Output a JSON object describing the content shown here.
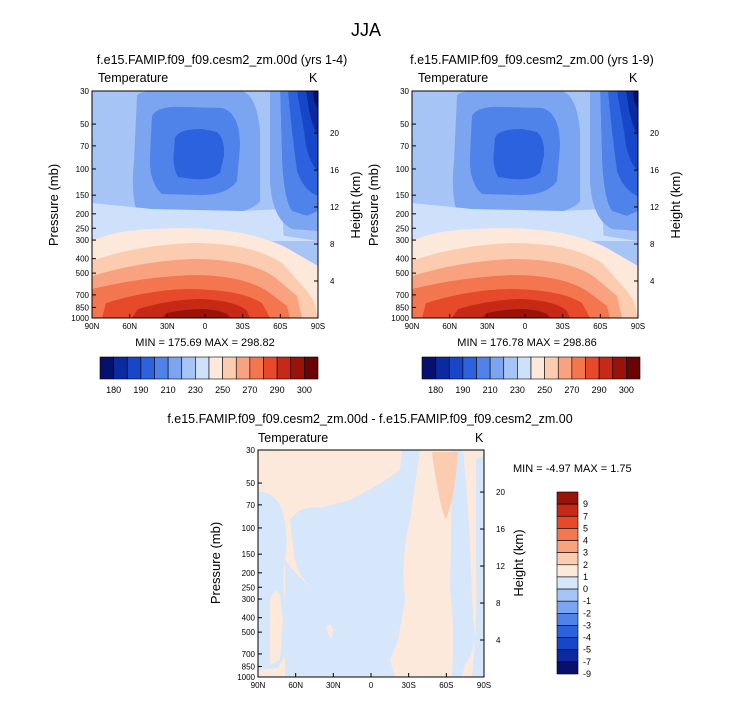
{
  "main_title": "JJA",
  "colors": {
    "temp_palette": [
      "#08106e",
      "#0b2aa0",
      "#1746c8",
      "#2c62dd",
      "#4f83ea",
      "#7ba4f1",
      "#a7c4f6",
      "#cfe0fa",
      "#fde8dc",
      "#fbccb0",
      "#f8a27f",
      "#f4764f",
      "#e64a2b",
      "#c62a17",
      "#9a1309",
      "#6a0303"
    ],
    "diff_palette": [
      "#08106e",
      "#0b2aa0",
      "#1746c8",
      "#2c62dd",
      "#4f83ea",
      "#7ba4f1",
      "#a7c4f6",
      "#d6e6fb",
      "#fde8dc",
      "#fbccb0",
      "#f8a27f",
      "#f4764f",
      "#e64a2b",
      "#c62a17",
      "#9a1309"
    ]
  },
  "panels": [
    {
      "title": "f.e15.FAMIP.f09_f09.cesm2_zm.00d (yrs 1-4)",
      "variable": "Temperature",
      "units": "K",
      "ylabel": "Pressure (mb)",
      "y2label": "Height (km)",
      "minmax": "MIN = 175.69  MAX = 298.82"
    },
    {
      "title": "f.e15.FAMIP.f09_f09.cesm2_zm.00 (yrs 1-9)",
      "variable": "Temperature",
      "units": "K",
      "ylabel": "Pressure (mb)",
      "y2label": "Height (km)",
      "minmax": "MIN = 176.78  MAX = 298.86"
    },
    {
      "title": "f.e15.FAMIP.f09_f09.cesm2_zm.00d - f.e15.FAMIP.f09_f09.cesm2_zm.00",
      "variable": "Temperature",
      "units": "K",
      "ylabel": "Pressure (mb)",
      "y2label": "Height (km)",
      "minmax": "MIN = -4.97  MAX =  1.75"
    }
  ],
  "chart_data": [
    {
      "type": "heatmap",
      "title": "f.e15.FAMIP.f09_f09.cesm2_zm.00d (yrs 1-4)",
      "xlabel": "",
      "ylabel": "Pressure (mb)",
      "x_ticks": [
        "90N",
        "60N",
        "30N",
        "0",
        "30S",
        "60S",
        "90S"
      ],
      "y_ticks": [
        "30",
        "50",
        "70",
        "100",
        "150",
        "200",
        "250",
        "300",
        "400",
        "500",
        "700",
        "850",
        "1000"
      ],
      "y2_ticks": [
        "4",
        "8",
        "12",
        "16",
        "20"
      ],
      "ylim": [
        1000,
        30
      ],
      "colorbar_labels": [
        "180",
        "190",
        "210",
        "230",
        "250",
        "270",
        "290",
        "300"
      ],
      "min": 175.69,
      "max": 298.82
    },
    {
      "type": "heatmap",
      "title": "f.e15.FAMIP.f09_f09.cesm2_zm.00 (yrs 1-9)",
      "xlabel": "",
      "ylabel": "Pressure (mb)",
      "x_ticks": [
        "90N",
        "60N",
        "30N",
        "0",
        "30S",
        "60S",
        "90S"
      ],
      "y_ticks": [
        "30",
        "50",
        "70",
        "100",
        "150",
        "200",
        "250",
        "300",
        "400",
        "500",
        "700",
        "850",
        "1000"
      ],
      "y2_ticks": [
        "4",
        "8",
        "12",
        "16",
        "20"
      ],
      "ylim": [
        1000,
        30
      ],
      "colorbar_labels": [
        "180",
        "190",
        "210",
        "230",
        "250",
        "270",
        "290",
        "300"
      ],
      "min": 176.78,
      "max": 298.86
    },
    {
      "type": "heatmap",
      "title": "f.e15.FAMIP.f09_f09.cesm2_zm.00d - f.e15.FAMIP.f09_f09.cesm2_zm.00",
      "xlabel": "",
      "ylabel": "Pressure (mb)",
      "x_ticks": [
        "90N",
        "60N",
        "30N",
        "0",
        "30S",
        "60S",
        "90S"
      ],
      "y_ticks": [
        "30",
        "50",
        "70",
        "100",
        "150",
        "200",
        "250",
        "300",
        "400",
        "500",
        "700",
        "850",
        "1000"
      ],
      "y2_ticks": [
        "4",
        "8",
        "12",
        "16",
        "20"
      ],
      "ylim": [
        1000,
        30
      ],
      "colorbar_labels": [
        "9",
        "7",
        "5",
        "4",
        "3",
        "2",
        "1",
        "0",
        "-1",
        "-2",
        "-3",
        "-4",
        "-5",
        "-7",
        "-9"
      ],
      "min": -4.97,
      "max": 1.75
    }
  ]
}
